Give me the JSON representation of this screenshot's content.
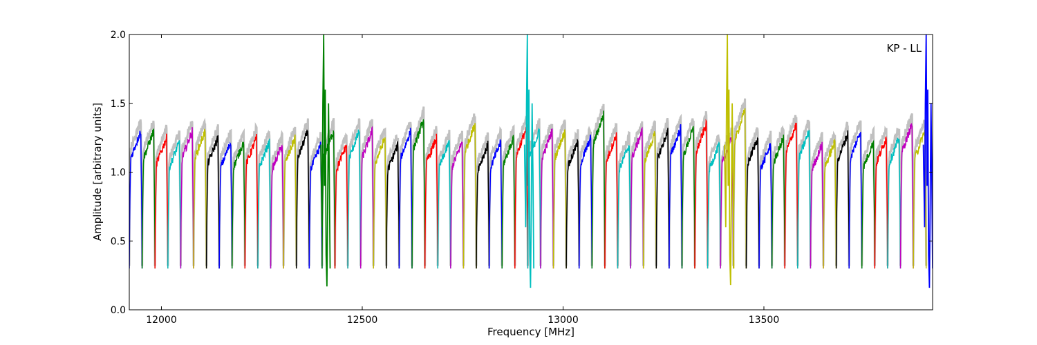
{
  "chart_data": {
    "type": "line",
    "title": "",
    "xlabel": "Frequency [MHz]",
    "ylabel": "Amplitude [arbitrary units]",
    "annotation": "KP - LL",
    "xlim": [
      11920,
      13920
    ],
    "ylim": [
      0,
      2.0
    ],
    "x_ticks": [
      12000,
      12500,
      13000,
      13500
    ],
    "x_tick_labels": [
      "12000",
      "12500",
      "13000",
      "13500"
    ],
    "y_ticks": [
      0.0,
      0.5,
      1.0,
      1.5,
      2.0
    ],
    "y_tick_labels": [
      "0.0",
      "0.5",
      "1.0",
      "1.5",
      "2.0"
    ],
    "grid": false,
    "background_color": "#c0c0c0",
    "color_cycle": [
      "#0000ff",
      "#008000",
      "#ff0000",
      "#00bfbf",
      "#bf00bf",
      "#bfbf00",
      "#000000"
    ],
    "channel_width_mhz": 32,
    "channel_start_mhz": 11920,
    "channel_count": 62,
    "channel_floor": 0.3,
    "channel_peaks": [
      1.3,
      1.3,
      1.25,
      1.22,
      1.3,
      1.3,
      1.25,
      1.22,
      1.22,
      1.25,
      1.22,
      1.2,
      1.25,
      1.3,
      1.2,
      1.3,
      1.2,
      1.3,
      1.3,
      1.25,
      1.2,
      1.3,
      1.38,
      1.25,
      1.22,
      1.22,
      1.35,
      1.2,
      1.22,
      1.25,
      1.32,
      1.3,
      1.3,
      1.3,
      1.22,
      1.25,
      1.42,
      1.27,
      1.2,
      1.3,
      1.28,
      1.3,
      1.32,
      1.32,
      1.35,
      1.2,
      1.25,
      1.45,
      1.25,
      1.2,
      1.25,
      1.35,
      1.3,
      1.2,
      1.22,
      1.28,
      1.3,
      1.22,
      1.25,
      1.25,
      1.35,
      1.3
    ],
    "spikes": [
      {
        "x": 12405,
        "peak": 2.0,
        "dip": 0.17,
        "color": "#008000"
      },
      {
        "x": 12912,
        "peak": 2.0,
        "dip": 0.16,
        "color": "#00bfbf"
      },
      {
        "x": 13410,
        "peak": 2.0,
        "dip": 0.18,
        "color": "#bfbf00"
      },
      {
        "x": 13905,
        "peak": 2.0,
        "dip": 0.16,
        "color": "#0000ff"
      }
    ]
  }
}
